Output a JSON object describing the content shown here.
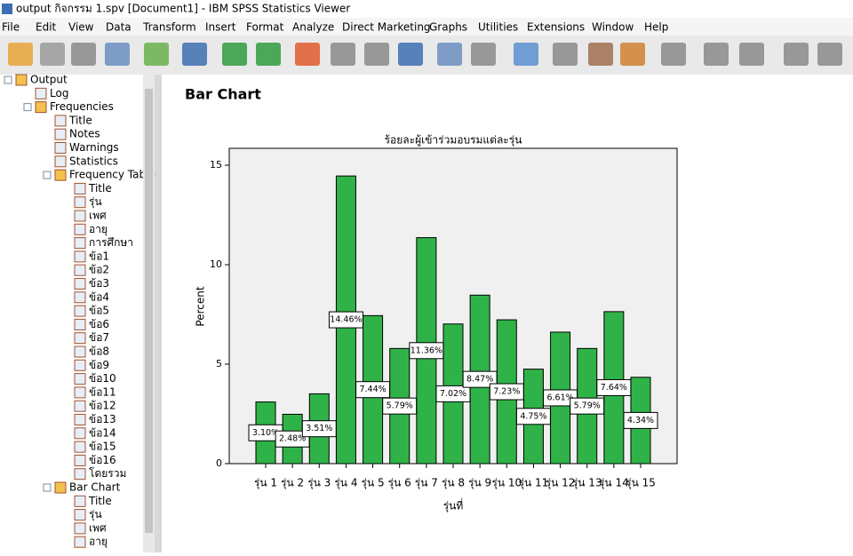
{
  "window": {
    "title": "output กิจกรรม 1.spv [Document1] - IBM SPSS Statistics Viewer"
  },
  "menu": [
    "File",
    "Edit",
    "View",
    "Data",
    "Transform",
    "Insert",
    "Format",
    "Analyze",
    "Direct Marketing",
    "Graphs",
    "Utilities",
    "Extensions",
    "Window",
    "Help"
  ],
  "outline": {
    "label": "Output",
    "children": [
      {
        "label": "Log"
      },
      {
        "label": "Frequencies",
        "children": [
          {
            "label": "Title"
          },
          {
            "label": "Notes"
          },
          {
            "label": "Warnings"
          },
          {
            "label": "Statistics"
          },
          {
            "label": "Frequency Table",
            "children": [
              {
                "label": "Title"
              },
              {
                "label": "รุ่น"
              },
              {
                "label": "เพศ"
              },
              {
                "label": "อายุ"
              },
              {
                "label": "การศึกษา"
              },
              {
                "label": "ข้อ1"
              },
              {
                "label": "ข้อ2"
              },
              {
                "label": "ข้อ3"
              },
              {
                "label": "ข้อ4"
              },
              {
                "label": "ข้อ5"
              },
              {
                "label": "ข้อ6"
              },
              {
                "label": "ข้อ7"
              },
              {
                "label": "ข้อ8"
              },
              {
                "label": "ข้อ9"
              },
              {
                "label": "ข้อ10"
              },
              {
                "label": "ข้อ11"
              },
              {
                "label": "ข้อ12"
              },
              {
                "label": "ข้อ13"
              },
              {
                "label": "ข้อ14"
              },
              {
                "label": "ข้อ15"
              },
              {
                "label": "ข้อ16"
              },
              {
                "label": "โดยรวม"
              }
            ]
          },
          {
            "label": "Bar Chart",
            "children": [
              {
                "label": "Title"
              },
              {
                "label": "รุ่น"
              },
              {
                "label": "เพศ"
              },
              {
                "label": "อายุ"
              }
            ]
          }
        ]
      }
    ]
  },
  "section_title": "Bar Chart",
  "chart_data": {
    "type": "bar",
    "title": "ร้อยละผู้เข้าร่วมอบรมแต่ละรุ่น",
    "x_label": "รุ่นที่",
    "y_label": "Percent",
    "categories": [
      "รุ่น 1",
      "รุ่น 2",
      "รุ่น 3",
      "รุ่น 4",
      "รุ่น 5",
      "รุ่น 6",
      "รุ่น 7",
      "รุ่น 8",
      "รุ่น 9",
      "รุ่น 10",
      "รุ่น 11",
      "รุ่น 12",
      "รุ่น 13",
      "รุ่น 14",
      "รุ่น 15"
    ],
    "values": [
      3.1,
      2.48,
      3.51,
      14.46,
      7.44,
      5.79,
      11.36,
      7.02,
      8.47,
      7.23,
      4.75,
      6.61,
      5.79,
      7.64,
      4.34
    ],
    "value_labels": [
      "3.10%",
      "2.48%",
      "3.51%",
      "14.46%",
      "7.44%",
      "5.79%",
      "11.36%",
      "7.02%",
      "8.47%",
      "7.23%",
      "4.75%",
      "6.61%",
      "5.79%",
      "7.64%",
      "4.34%"
    ],
    "color": "#2fb348",
    "ylim": [
      0,
      15.85
    ],
    "yticks": [
      0,
      5,
      10,
      15
    ]
  }
}
